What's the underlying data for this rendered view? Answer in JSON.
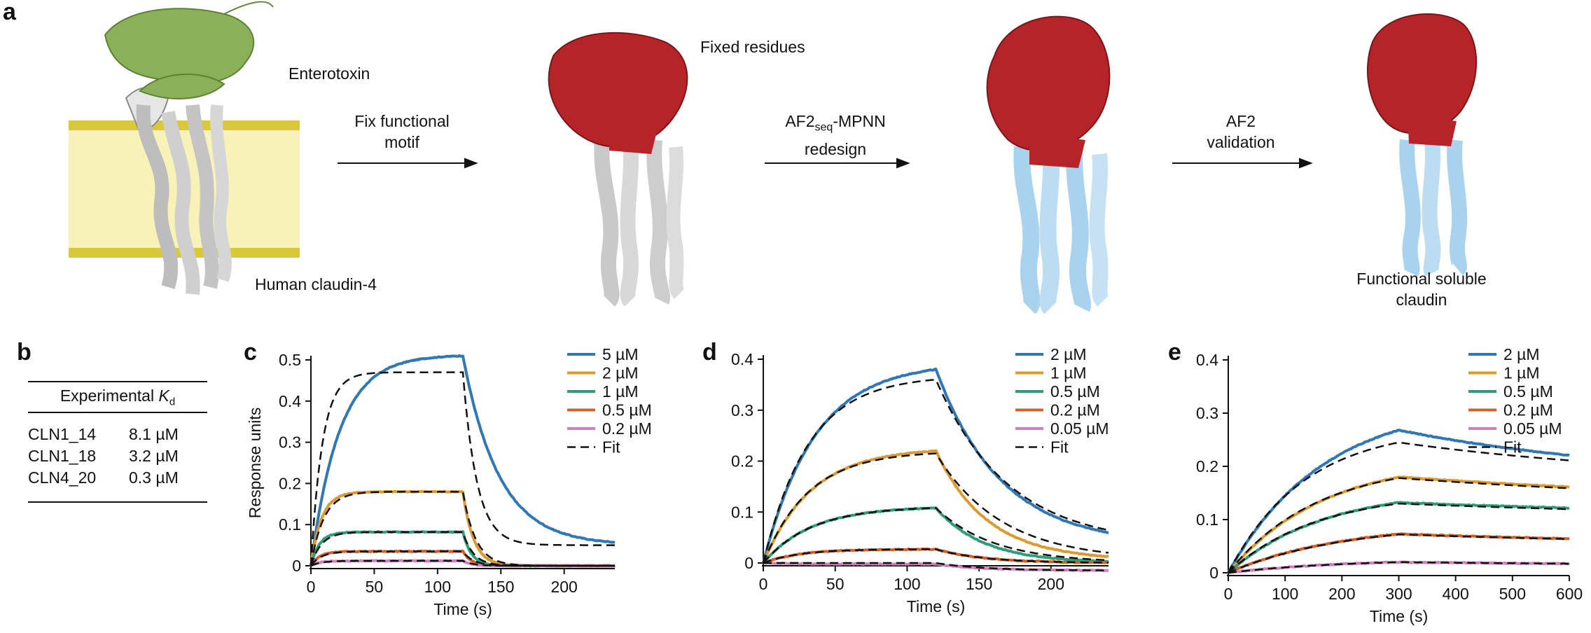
{
  "panel_letters": {
    "a": "a",
    "b": "b",
    "c": "c",
    "d": "d",
    "e": "e"
  },
  "panel_a": {
    "enterotoxin": "Enterotoxin",
    "human_claudin": "Human claudin-4",
    "step1": [
      "Fix functional",
      "motif"
    ],
    "fixed_residues": "Fixed residues",
    "step2_prefix": "AF2",
    "step2_sub": "seq",
    "step2_suffix": "-MPNN",
    "step2_line2": "redesign",
    "step3": [
      "AF2",
      "validation"
    ],
    "result": [
      "Functional soluble",
      "claudin"
    ],
    "colors": {
      "membrane": "#f8f2b8",
      "membrane_edge": "#d9c93a",
      "enterotoxin": "#8bb05a",
      "fixed": "#b52428",
      "native": "#e4e4e4",
      "redesigned": "#a9d2ee"
    }
  },
  "panel_b": {
    "header_prefix": "Experimental ",
    "header_var": "K",
    "header_sub": "d",
    "rows": [
      {
        "name": "CLN1_14",
        "kd": "8.1 µM"
      },
      {
        "name": "CLN1_18",
        "kd": "3.2 µM"
      },
      {
        "name": "CLN4_20",
        "kd": "0.3 µM"
      }
    ]
  },
  "chart_data": [
    {
      "id": "c",
      "type": "line",
      "xlabel": "Time (s)",
      "ylabel": "Response units",
      "xlim": [
        0,
        240
      ],
      "ylim": [
        0,
        0.5
      ],
      "xticks": [
        0,
        50,
        100,
        150,
        200
      ],
      "yticks": [
        0,
        0.1,
        0.2,
        0.3,
        0.4,
        0.5
      ],
      "assoc_end": 120,
      "series": [
        {
          "name": "5 µM",
          "color": "#2f78b5",
          "plateau": 0.51,
          "end": 0.05,
          "kon": 0.045,
          "koff": 0.035,
          "fit_plateau": 0.47,
          "fit_kon": 0.11,
          "fit_koff": 0.09
        },
        {
          "name": "2 µM",
          "color": "#dc9a2e",
          "plateau": 0.18,
          "end": 0.0,
          "kon": 0.12,
          "koff": 0.12,
          "fit_plateau": 0.18,
          "fit_kon": 0.1,
          "fit_koff": 0.1
        },
        {
          "name": "1 µM",
          "color": "#2d9d7a",
          "plateau": 0.082,
          "end": 0.0,
          "kon": 0.15,
          "koff": 0.15,
          "fit_plateau": 0.082,
          "fit_kon": 0.12,
          "fit_koff": 0.12
        },
        {
          "name": "0.5 µM",
          "color": "#d45f27",
          "plateau": 0.035,
          "end": 0.0,
          "kon": 0.15,
          "koff": 0.15,
          "fit_plateau": 0.035,
          "fit_kon": 0.12,
          "fit_koff": 0.12
        },
        {
          "name": "0.2 µM",
          "color": "#cf7fbc",
          "plateau": 0.012,
          "end": 0.0,
          "kon": 0.15,
          "koff": 0.15,
          "fit_plateau": 0.012,
          "fit_kon": 0.12,
          "fit_koff": 0.12
        }
      ],
      "fit_label": "Fit"
    },
    {
      "id": "d",
      "type": "line",
      "xlabel": "Time (s)",
      "ylabel": "",
      "xlim": [
        0,
        240
      ],
      "ylim": [
        0,
        0.4
      ],
      "xticks": [
        0,
        50,
        100,
        150,
        200
      ],
      "yticks": [
        0,
        0.1,
        0.2,
        0.3,
        0.4
      ],
      "assoc_end": 120,
      "series": [
        {
          "name": "2 µM",
          "color": "#2f78b5",
          "plateau": 0.38,
          "end": 0.035,
          "kon": 0.028,
          "koff": 0.022,
          "fit_plateau": 0.36,
          "fit_kon": 0.032,
          "fit_koff": 0.02
        },
        {
          "name": "1 µM",
          "color": "#dc9a2e",
          "plateau": 0.22,
          "end": 0.005,
          "kon": 0.03,
          "koff": 0.028,
          "fit_plateau": 0.215,
          "fit_kon": 0.032,
          "fit_koff": 0.022
        },
        {
          "name": "0.5 µM",
          "color": "#2d9d7a",
          "plateau": 0.108,
          "end": 0.0,
          "kon": 0.03,
          "koff": 0.03,
          "fit_plateau": 0.108,
          "fit_kon": 0.03,
          "fit_koff": 0.025
        },
        {
          "name": "0.2 µM",
          "color": "#d45f27",
          "plateau": 0.027,
          "end": 0.0,
          "kon": 0.04,
          "koff": 0.03,
          "fit_plateau": 0.027,
          "fit_kon": 0.04,
          "fit_koff": 0.03
        },
        {
          "name": "0.05 µM",
          "color": "#cf7fbc",
          "plateau": -0.002,
          "end": -0.015,
          "kon": 0.04,
          "koff": 0.03,
          "fit_plateau": 0.0,
          "fit_kon": 0.04,
          "fit_koff": 0.03
        }
      ],
      "fit_label": "Fit"
    },
    {
      "id": "e",
      "type": "line",
      "xlabel": "Time (s)",
      "ylabel": "",
      "xlim": [
        0,
        600
      ],
      "ylim": [
        0,
        0.4
      ],
      "xticks": [
        0,
        100,
        200,
        300,
        400,
        500,
        600
      ],
      "yticks": [
        0,
        0.1,
        0.2,
        0.3,
        0.4
      ],
      "assoc_end": 300,
      "series": [
        {
          "name": "2 µM",
          "color": "#2f78b5",
          "plateau": 0.268,
          "end": 0.17,
          "kon": 0.006,
          "koff": 0.0022,
          "fit_plateau": 0.245,
          "fit_kon": 0.0075,
          "fit_koff": 0.002
        },
        {
          "name": "1 µM",
          "color": "#dc9a2e",
          "plateau": 0.18,
          "end": 0.122,
          "kon": 0.006,
          "koff": 0.0013,
          "fit_plateau": 0.178,
          "fit_kon": 0.0065,
          "fit_koff": 0.0014
        },
        {
          "name": "0.5 µM",
          "color": "#2d9d7a",
          "plateau": 0.132,
          "end": 0.095,
          "kon": 0.006,
          "koff": 0.0011,
          "fit_plateau": 0.13,
          "fit_kon": 0.0065,
          "fit_koff": 0.0012
        },
        {
          "name": "0.2 µM",
          "color": "#d45f27",
          "plateau": 0.073,
          "end": 0.047,
          "kon": 0.005,
          "koff": 0.0014,
          "fit_plateau": 0.072,
          "fit_kon": 0.005,
          "fit_koff": 0.0014
        },
        {
          "name": "0.05 µM",
          "color": "#cf7fbc",
          "plateau": 0.02,
          "end": 0.012,
          "kon": 0.005,
          "koff": 0.0015,
          "fit_plateau": 0.02,
          "fit_kon": 0.005,
          "fit_koff": 0.0015
        }
      ],
      "fit_label": "Fit"
    }
  ]
}
